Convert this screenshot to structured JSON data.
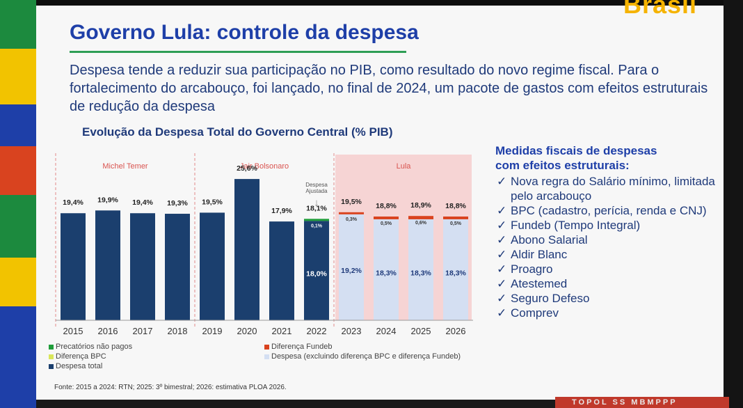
{
  "title": "Governo Lula: controle da despesa",
  "subtitle": "Despesa tende a reduzir sua participação no PIB, como resultado do novo regime fiscal. Para o fortalecimento do arcabouço, foi lançado, no final de 2024, um pacote de gastos com efeitos estruturais de redução da despesa",
  "brand_text": "Brasil",
  "bottom_tag_text": "TOPOL SS MBMPPP",
  "colors": {
    "despesa_total": "#1b3f6e",
    "precatorios": "#1f9d3a",
    "diferenca_fundeb": "#d9431f",
    "diferenca_bpc": "#d8e65a",
    "despesa_excluindo": "#d4dff2",
    "lula_shade": "#f6d4d4",
    "divider": "#e08a8a"
  },
  "chart_data": {
    "type": "bar",
    "title": "Evolução da Despesa Total do Governo Central (% PIB)",
    "categories": [
      "2015",
      "2016",
      "2017",
      "2018",
      "2019",
      "2020",
      "2021",
      "2022",
      "2023",
      "2024",
      "2025",
      "2026"
    ],
    "series": [
      {
        "name": "Despesa total",
        "values": [
          19.4,
          19.9,
          19.4,
          19.3,
          19.5,
          25.6,
          17.9,
          18.0,
          null,
          null,
          null,
          null
        ]
      },
      {
        "name": "Precatórios não pagos",
        "values": [
          null,
          null,
          null,
          null,
          null,
          null,
          null,
          0.1,
          null,
          null,
          null,
          null
        ]
      },
      {
        "name": "Despesa (excluindo diferença BPC e diferença Fundeb)",
        "values": [
          null,
          null,
          null,
          null,
          null,
          null,
          null,
          null,
          19.2,
          18.3,
          18.3,
          18.3
        ]
      },
      {
        "name": "Diferença Fundeb",
        "values": [
          null,
          null,
          null,
          null,
          null,
          null,
          null,
          null,
          0.3,
          0.5,
          0.6,
          0.5
        ]
      },
      {
        "name": "Diferença BPC",
        "values": [
          null,
          null,
          null,
          null,
          null,
          null,
          null,
          null,
          null,
          null,
          null,
          null
        ]
      }
    ],
    "top_labels": [
      "19,4%",
      "19,9%",
      "19,4%",
      "19,3%",
      "19,5%",
      "25,6%",
      "17,9%",
      "18,1%",
      "19,5%",
      "18,8%",
      "18,9%",
      "18,8%"
    ],
    "inner_labels": [
      "",
      "",
      "",
      "",
      "",
      "",
      "",
      "18,0%",
      "19,2%",
      "18,3%",
      "18,3%",
      "18,3%"
    ],
    "small_labels": [
      "",
      "",
      "",
      "",
      "",
      "",
      "",
      "0,1%",
      "0,3%",
      "0,5%",
      "0,6%",
      "0,5%"
    ],
    "periods": [
      {
        "name": "Michel Temer",
        "start": 0,
        "end": 3
      },
      {
        "name": "Jair Bolsonaro",
        "start": 4,
        "end": 7
      },
      {
        "name": "Lula",
        "start": 8,
        "end": 11
      }
    ],
    "annotation": {
      "text_line1": "Despesa",
      "text_line2": "Ajustada",
      "arrow": "↓",
      "category": "2022"
    },
    "ylim": [
      0,
      27
    ],
    "legend": [
      {
        "label": "Precatórios não pagos",
        "color": "#1f9d3a"
      },
      {
        "label": "Diferença Fundeb",
        "color": "#d9431f"
      },
      {
        "label": "Diferença BPC",
        "color": "#d8e65a"
      },
      {
        "label": "Despesa (excluindo diferença BPC e diferença Fundeb)",
        "color": "#d4dff2"
      },
      {
        "label": "Despesa  total",
        "color": "#1b3f6e"
      }
    ],
    "source": "Fonte: 2015 a 2024: RTN; 2025: 3º bimestral; 2026: estimativa PLOA 2026."
  },
  "measures": {
    "title_line1": "Medidas fiscais de despesas",
    "title_line2": "com efeitos estruturais:",
    "check_glyph": "✓",
    "items": [
      "Nova regra do Salário mínimo, limitada pelo arcabouço",
      "BPC (cadastro, perícia, renda e CNJ)",
      "Fundeb (Tempo Integral)",
      "Abono Salarial",
      "Aldir Blanc",
      "Proagro",
      "Atestemed",
      "Seguro Defeso",
      "Comprev"
    ]
  }
}
